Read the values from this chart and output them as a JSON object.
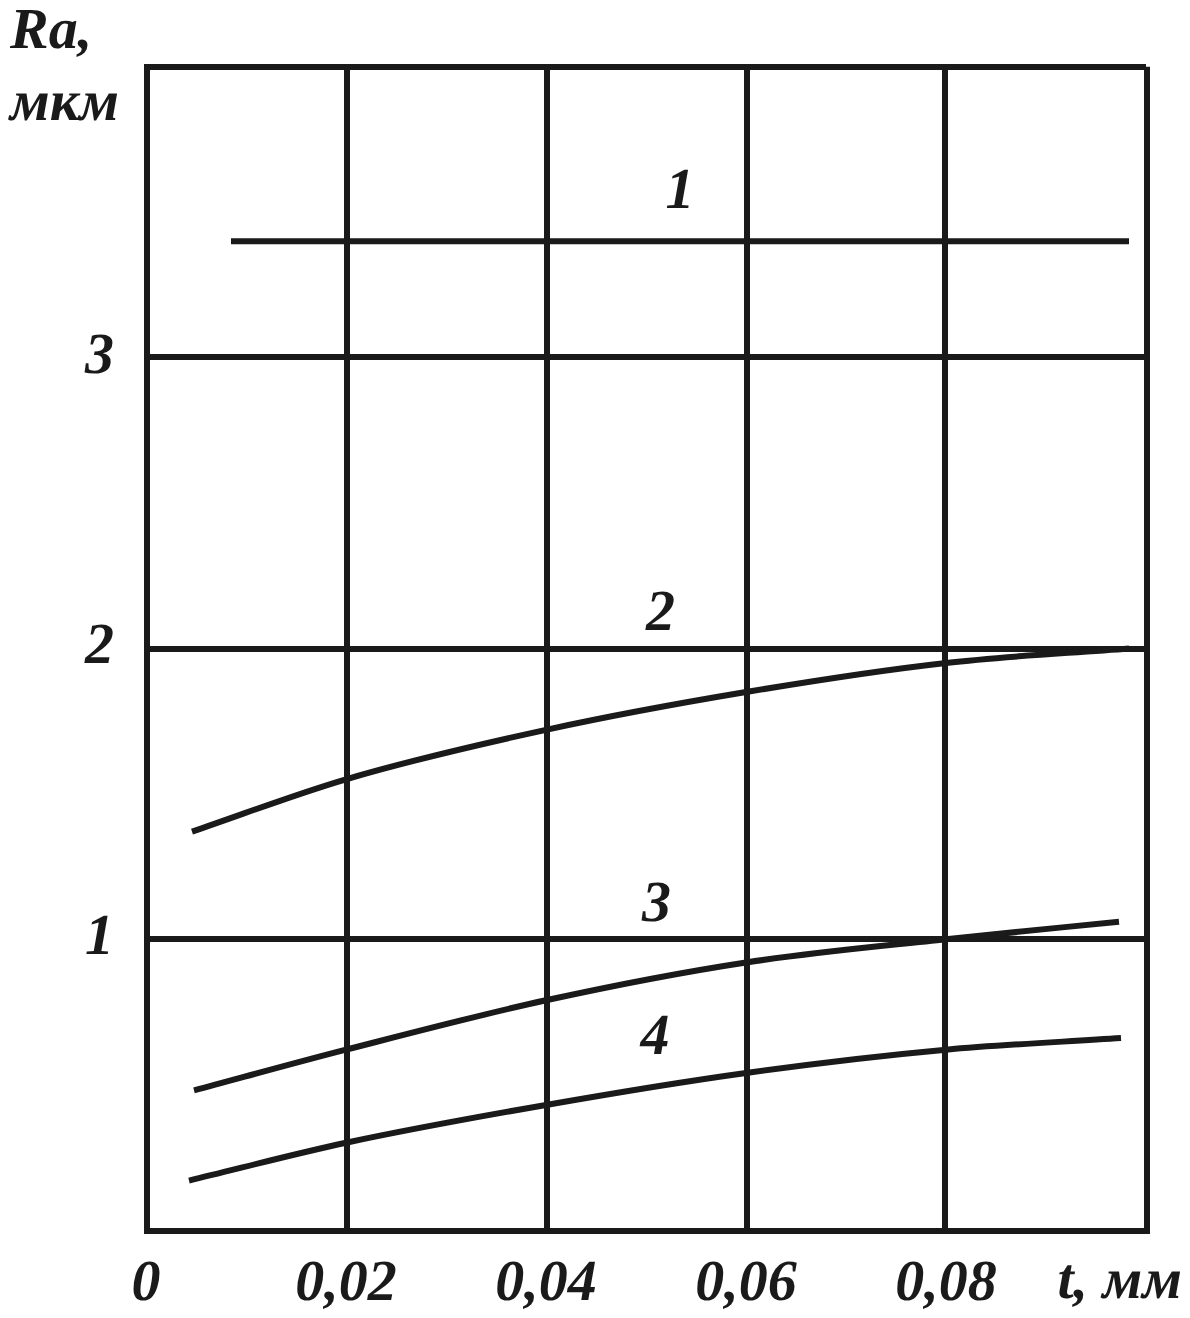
{
  "chart_data": {
    "type": "line",
    "xlabel": "t, мм",
    "ylabel": "Ra, мкм",
    "xlim": [
      0,
      0.1
    ],
    "ylim": [
      0,
      4
    ],
    "xticks": [
      {
        "value": 0,
        "label": "0"
      },
      {
        "value": 0.02,
        "label": "0,02"
      },
      {
        "value": 0.04,
        "label": "0,04"
      },
      {
        "value": 0.06,
        "label": "0,06"
      },
      {
        "value": 0.08,
        "label": "0,08"
      },
      {
        "value": 0.1,
        "label": null
      }
    ],
    "yticks": [
      {
        "value": 0,
        "label": null
      },
      1,
      2,
      3,
      {
        "value": 4,
        "label": null
      }
    ],
    "grid": true,
    "legend": false,
    "marker": "none",
    "line_style": "solid",
    "series": [
      {
        "name": "1",
        "color": "#1a1a1a",
        "x": [
          0.0085,
          0.0983
        ],
        "values": [
          3.4,
          3.4
        ]
      },
      {
        "name": "2",
        "color": "#1a1a1a",
        "x": [
          0.0046,
          0.02,
          0.04,
          0.06,
          0.08,
          0.0983
        ],
        "values": [
          1.37,
          1.55,
          1.72,
          1.85,
          1.95,
          2.0
        ]
      },
      {
        "name": "3",
        "color": "#1a1a1a",
        "x": [
          0.0048,
          0.02,
          0.04,
          0.06,
          0.08,
          0.0973
        ],
        "values": [
          0.48,
          0.62,
          0.79,
          0.92,
          1.0,
          1.06
        ]
      },
      {
        "name": "4",
        "color": "#1a1a1a",
        "x": [
          0.0043,
          0.02,
          0.04,
          0.06,
          0.08,
          0.0975
        ],
        "values": [
          0.17,
          0.3,
          0.43,
          0.54,
          0.62,
          0.66
        ]
      }
    ]
  }
}
